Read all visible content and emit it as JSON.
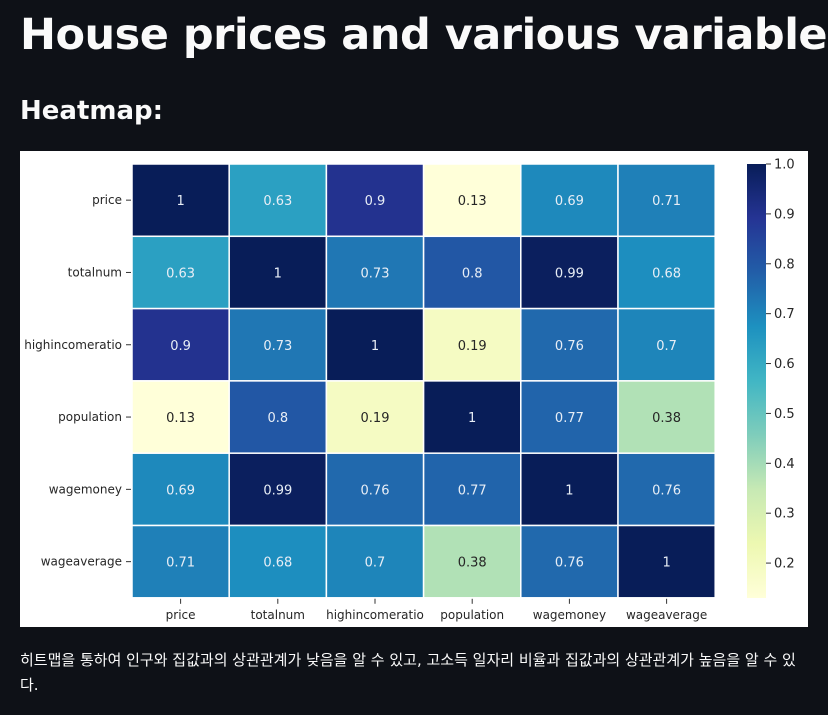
{
  "page": {
    "title": "House prices and various variables",
    "subtitle": "Heatmap:",
    "caption": "히트맵을 통하여 인구와 집값과의 상관관계가 낮음을 알 수 있고, 고소득 일자리 비율과 집값과의 상관관계가 높음을 알 수 있다."
  },
  "chart_data": {
    "type": "heatmap",
    "title": "",
    "xlabel": "",
    "ylabel": "",
    "x_categories": [
      "price",
      "totalnum",
      "highincomeratio",
      "population",
      "wagemoney",
      "wageaverage"
    ],
    "y_categories": [
      "price",
      "totalnum",
      "highincomeratio",
      "population",
      "wagemoney",
      "wageaverage"
    ],
    "values": [
      [
        1,
        0.63,
        0.9,
        0.13,
        0.69,
        0.71
      ],
      [
        0.63,
        1,
        0.73,
        0.8,
        0.99,
        0.68
      ],
      [
        0.9,
        0.73,
        1,
        0.19,
        0.76,
        0.7
      ],
      [
        0.13,
        0.8,
        0.19,
        1,
        0.77,
        0.38
      ],
      [
        0.69,
        0.99,
        0.76,
        0.77,
        1,
        0.76
      ],
      [
        0.71,
        0.68,
        0.7,
        0.38,
        0.76,
        1
      ]
    ],
    "cell_labels": [
      [
        "1",
        "0.63",
        "0.9",
        "0.13",
        "0.69",
        "0.71"
      ],
      [
        "0.63",
        "1",
        "0.73",
        "0.8",
        "0.99",
        "0.68"
      ],
      [
        "0.9",
        "0.73",
        "1",
        "0.19",
        "0.76",
        "0.7"
      ],
      [
        "0.13",
        "0.8",
        "0.19",
        "1",
        "0.77",
        "0.38"
      ],
      [
        "0.69",
        "0.99",
        "0.76",
        "0.77",
        "1",
        "0.76"
      ],
      [
        "0.71",
        "0.68",
        "0.7",
        "0.38",
        "0.76",
        "1"
      ]
    ],
    "colormap": "YlGnBu",
    "colorbar": {
      "range": [
        0.13,
        1.0
      ],
      "ticks": [
        0.2,
        0.3,
        0.4,
        0.5,
        0.6,
        0.7,
        0.8,
        0.9,
        1.0
      ],
      "tick_labels": [
        "0.2",
        "0.3",
        "0.4",
        "0.5",
        "0.6",
        "0.7",
        "0.8",
        "0.9",
        "1.0"
      ],
      "placement": "right"
    },
    "grid_line_color": "#ffffff",
    "colors": {
      "stops": [
        "#ffffd9",
        "#edf8b1",
        "#c7e9b4",
        "#7fcdbb",
        "#41b6c4",
        "#1d91c0",
        "#225ea8",
        "#253494",
        "#081d58"
      ],
      "text_light": "#e8eef6",
      "text_dark": "#262626"
    }
  }
}
